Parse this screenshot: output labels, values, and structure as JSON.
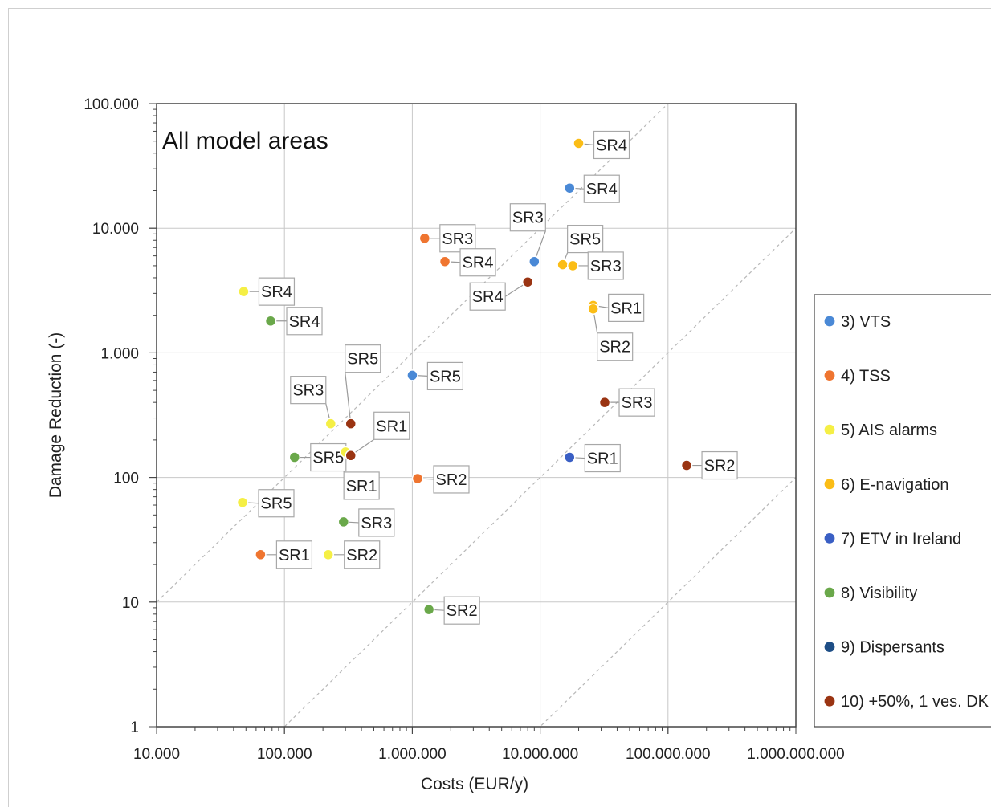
{
  "chart_data": {
    "type": "scatter",
    "title": "All model areas",
    "xlabel": "Costs (EUR/y)",
    "ylabel": "Damage Reduction (-)",
    "x_scale": "log",
    "y_scale": "log",
    "xlim": [
      10000,
      1000000000
    ],
    "ylim": [
      1,
      100000
    ],
    "x_ticks": [
      10000,
      100000,
      1000000,
      10000000,
      100000000,
      1000000000
    ],
    "x_tick_labels": [
      "10.000",
      "100.000",
      "1.000.000",
      "10.000.000",
      "100.000.000",
      "1.000.000.000"
    ],
    "y_ticks": [
      1,
      10,
      100,
      1000,
      10000,
      100000
    ],
    "y_tick_labels": [
      "1",
      "10",
      "100",
      "1.000",
      "10.000",
      "100.000"
    ],
    "grid": true,
    "reference_lines": "dashed diagonal lines of constant cost/benefit ratio",
    "legend_position": "right",
    "series": [
      {
        "name": "3) VTS",
        "color": "#4a89d6",
        "points": [
          {
            "x": 17000000,
            "y": 21000,
            "label": "SR4"
          },
          {
            "x": 9000000,
            "y": 5400,
            "label": "SR3"
          },
          {
            "x": 1000000,
            "y": 660,
            "label": "SR5"
          }
        ]
      },
      {
        "name": "4) TSS",
        "color": "#ef7530",
        "points": [
          {
            "x": 1250000,
            "y": 8300,
            "label": "SR3"
          },
          {
            "x": 1800000,
            "y": 5400,
            "label": "SR4"
          },
          {
            "x": 1100000,
            "y": 98,
            "label": "SR2"
          },
          {
            "x": 65000,
            "y": 24,
            "label": "SR1"
          }
        ]
      },
      {
        "name": "5) AIS alarms",
        "color": "#f5ef45",
        "points": [
          {
            "x": 48000,
            "y": 3100,
            "label": "SR4"
          },
          {
            "x": 230000,
            "y": 270,
            "label": "SR3"
          },
          {
            "x": 300000,
            "y": 160,
            "label": "SR1"
          },
          {
            "x": 47000,
            "y": 63,
            "label": "SR5"
          },
          {
            "x": 220000,
            "y": 24,
            "label": "SR2"
          }
        ]
      },
      {
        "name": "6) E-navigation",
        "color": "#fbbd16",
        "points": [
          {
            "x": 20000000,
            "y": 48000,
            "label": "SR4"
          },
          {
            "x": 15000000,
            "y": 5100,
            "label": "SR5"
          },
          {
            "x": 18000000,
            "y": 5000,
            "label": "SR3"
          },
          {
            "x": 26000000,
            "y": 2400,
            "label": "SR1"
          },
          {
            "x": 26000000,
            "y": 2250,
            "label": "SR2"
          }
        ]
      },
      {
        "name": "7) ETV in Ireland",
        "color": "#3a5fc4",
        "points": [
          {
            "x": 17000000,
            "y": 145,
            "label": "SR1"
          }
        ]
      },
      {
        "name": "8) Visibility",
        "color": "#6aa84a",
        "points": [
          {
            "x": 78000,
            "y": 1800,
            "label": "SR4"
          },
          {
            "x": 120000,
            "y": 145,
            "label": "SR5"
          },
          {
            "x": 290000,
            "y": 44,
            "label": "SR3"
          },
          {
            "x": 1350000,
            "y": 8.7,
            "label": "SR2"
          }
        ]
      },
      {
        "name": "9) Dispersants",
        "color": "#1e4e86",
        "points": []
      },
      {
        "name": "10) +50%, 1 ves. DK",
        "color": "#9a3412",
        "points": [
          {
            "x": 8000000,
            "y": 3700,
            "label": "SR4"
          },
          {
            "x": 32000000,
            "y": 400,
            "label": "SR3"
          },
          {
            "x": 140000000,
            "y": 125,
            "label": "SR2"
          },
          {
            "x": 330000,
            "y": 270,
            "label": "SR5"
          },
          {
            "x": 330000,
            "y": 150,
            "label": "SR1"
          }
        ]
      }
    ]
  }
}
